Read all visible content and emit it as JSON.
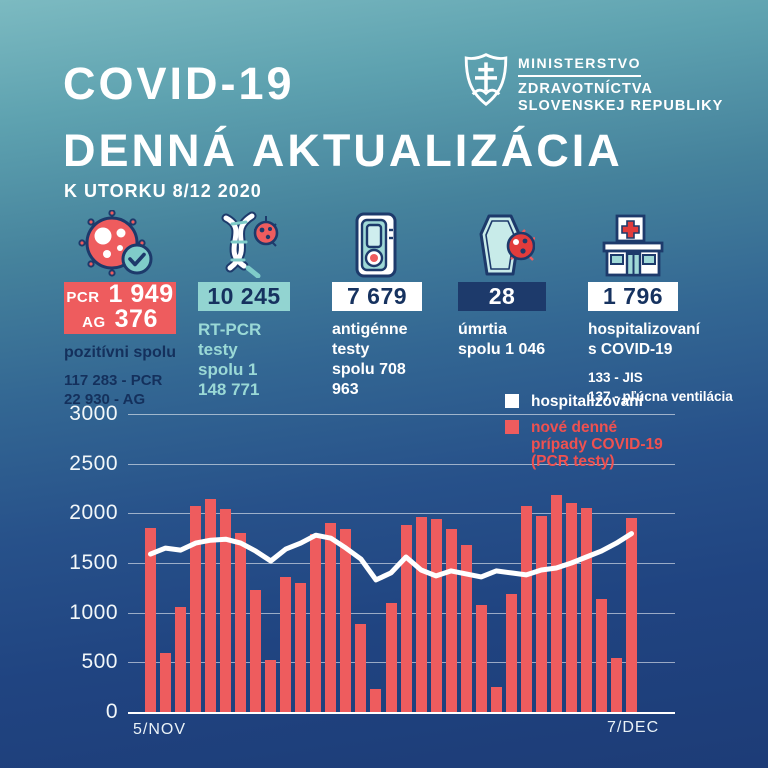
{
  "header": {
    "title_line1": "COVID-19",
    "title_line2": "DENNÁ AKTUALIZÁCIA",
    "subtitle": "K UTORKU 8/12 2020",
    "ministry": {
      "logo_icon": "slovak-coat-of-arms-shield-icon",
      "line1": "MINISTERSTVO",
      "line2": "ZDRAVOTNÍCTVA",
      "line3": "SLOVENSKEJ REPUBLIKY"
    }
  },
  "stats": [
    {
      "icon": "virus-check-icon",
      "box_style": "red",
      "box_lines": [
        {
          "label": "PCR",
          "value": "1 949"
        },
        {
          "label": "AG",
          "value": "376"
        }
      ],
      "caption": "pozitívni spolu",
      "details": [
        "117 283 - PCR",
        "22 930 - AG"
      ]
    },
    {
      "icon": "dna-virus-icon",
      "box_style": "teal",
      "value": "10 245",
      "caption_lines": [
        "RT-PCR testy",
        "spolu 1 148 771"
      ]
    },
    {
      "icon": "antigen-test-icon",
      "box_style": "white",
      "value": "7 679",
      "caption_lines": [
        "antigénne testy",
        "spolu 708 963"
      ]
    },
    {
      "icon": "coffin-virus-icon",
      "box_style": "navy",
      "value": "28",
      "caption_lines": [
        "úmrtia",
        "spolu 1 046"
      ]
    },
    {
      "icon": "hospital-icon",
      "box_style": "white",
      "value": "1 796",
      "caption_lines": [
        "hospitalizovaní",
        "s COVID-19"
      ],
      "details": [
        "133 - JIS",
        "137 - pľúcna ventilácia"
      ]
    }
  ],
  "chart_data": {
    "type": "bar",
    "title": "",
    "ylim": [
      0,
      3000
    ],
    "y_ticks": [
      0,
      500,
      1000,
      1500,
      2000,
      2500,
      3000
    ],
    "x_tick_labels": [
      "5/NOV",
      "7/DEC"
    ],
    "grid": true,
    "legend_position": "top-right",
    "legend": [
      {
        "swatch_color": "#ffffff",
        "lines": [
          "hospitalizovaní"
        ]
      },
      {
        "swatch_color": "#ee5c5e",
        "lines": [
          "nové denné",
          "prípady COVID-19",
          "(PCR testy)"
        ]
      }
    ],
    "series": [
      {
        "name": "nové denné prípady COVID-19 (PCR testy)",
        "type": "bar",
        "color": "#ee5c5e",
        "values": [
          1850,
          595,
          1060,
          2070,
          2140,
          2045,
          1800,
          1230,
          520,
          1355,
          1300,
          1790,
          1900,
          1840,
          890,
          230,
          1100,
          1880,
          1965,
          1940,
          1840,
          1680,
          1075,
          250,
          1190,
          2075,
          1970,
          2180,
          2100,
          2050,
          1140,
          540,
          1950
        ]
      },
      {
        "name": "hospitalizovaní",
        "type": "line",
        "color": "#ffffff",
        "values": [
          1590,
          1650,
          1630,
          1700,
          1730,
          1740,
          1700,
          1620,
          1520,
          1640,
          1700,
          1780,
          1750,
          1650,
          1540,
          1330,
          1400,
          1560,
          1430,
          1370,
          1420,
          1390,
          1360,
          1420,
          1400,
          1380,
          1430,
          1450,
          1500,
          1560,
          1620,
          1700,
          1796
        ]
      }
    ]
  },
  "colors": {
    "accent_red": "#ee5c5e",
    "teal_box": "#92d4d1",
    "navy_box": "#1d3a6b",
    "navy_text": "#16325f",
    "background_top": "#7cbac1",
    "background_bottom": "#1d3c77",
    "line_white": "#ffffff"
  }
}
